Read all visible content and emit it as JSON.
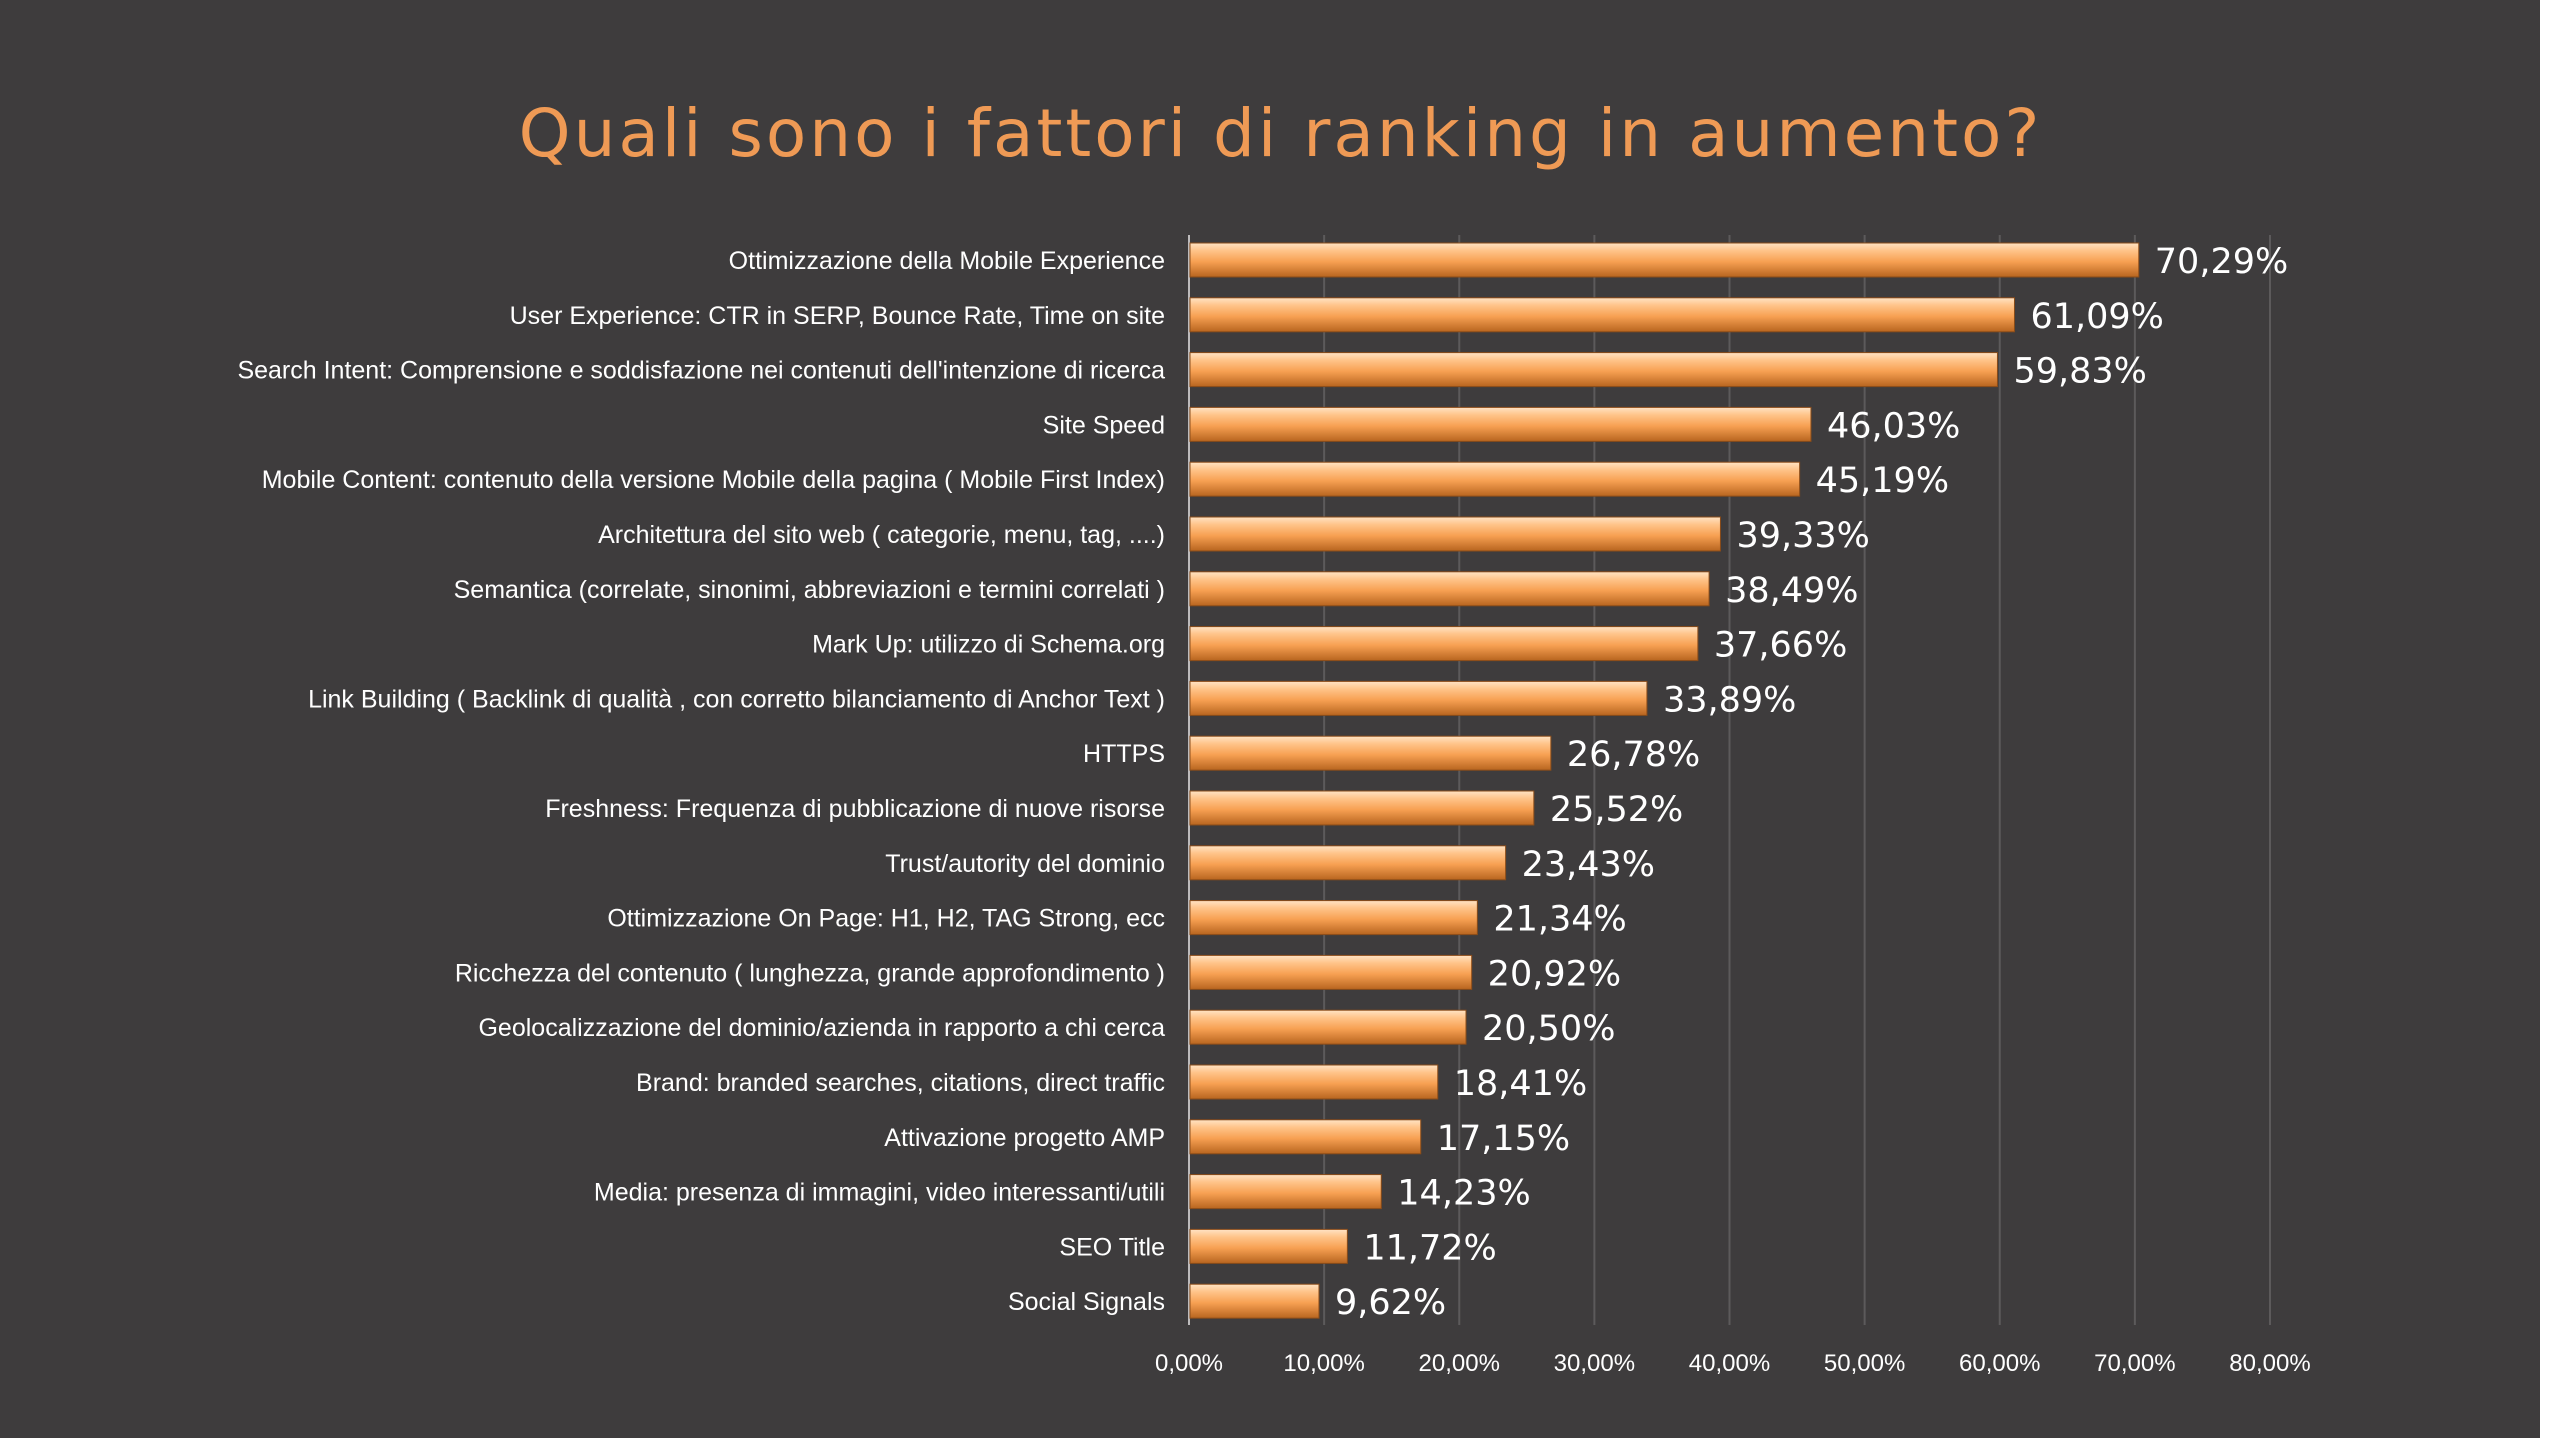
{
  "chart_data": {
    "type": "bar",
    "orientation": "horizontal",
    "title": "Quali sono i fattori di ranking in aumento?",
    "xlim": [
      0,
      80
    ],
    "tick_values": [
      0,
      10,
      20,
      30,
      40,
      50,
      60,
      70,
      80
    ],
    "tick_labels": [
      "0,00%",
      "10,00%",
      "20,00%",
      "30,00%",
      "40,00%",
      "50,00%",
      "60,00%",
      "70,00%",
      "80,00%"
    ],
    "grid": "vertical",
    "bar_color": "#f39a4c",
    "categories": [
      "Ottimizzazione della Mobile Experience",
      "User Experience: CTR in SERP, Bounce Rate, Time on site",
      "Search Intent: Comprensione e soddisfazione nei contenuti dell'intenzione di ricerca",
      "Site Speed",
      "Mobile Content: contenuto della versione Mobile della pagina ( Mobile First Index)",
      "Architettura del sito web ( categorie, menu, tag, ....)",
      "Semantica (correlate, sinonimi, abbreviazioni e termini correlati )",
      "Mark Up: utilizzo di Schema.org",
      "Link Building ( Backlink di qualità , con corretto bilanciamento di Anchor Text )",
      "HTTPS",
      "Freshness: Frequenza di pubblicazione di nuove risorse",
      "Trust/autority del dominio",
      "Ottimizzazione On Page: H1, H2, TAG Strong, ecc",
      "Ricchezza del contenuto ( lunghezza, grande approfondimento )",
      "Geolocalizzazione del dominio/azienda in rapporto a chi cerca",
      "Brand: branded searches, citations, direct traffic",
      "Attivazione progetto AMP",
      "Media: presenza di immagini, video interessanti/utili",
      "SEO Title",
      "Social Signals"
    ],
    "values": [
      70.29,
      61.09,
      59.83,
      46.03,
      45.19,
      39.33,
      38.49,
      37.66,
      33.89,
      26.78,
      25.52,
      23.43,
      21.34,
      20.92,
      20.5,
      18.41,
      17.15,
      14.23,
      11.72,
      9.62
    ],
    "value_labels": [
      "70,29%",
      "61,09%",
      "59,83%",
      "46,03%",
      "45,19%",
      "39,33%",
      "38,49%",
      "37,66%",
      "33,89%",
      "26,78%",
      "25,52%",
      "23,43%",
      "21,34%",
      "20,92%",
      "20,50%",
      "18,41%",
      "17,15%",
      "14,23%",
      "11,72%",
      "9,62%"
    ]
  }
}
